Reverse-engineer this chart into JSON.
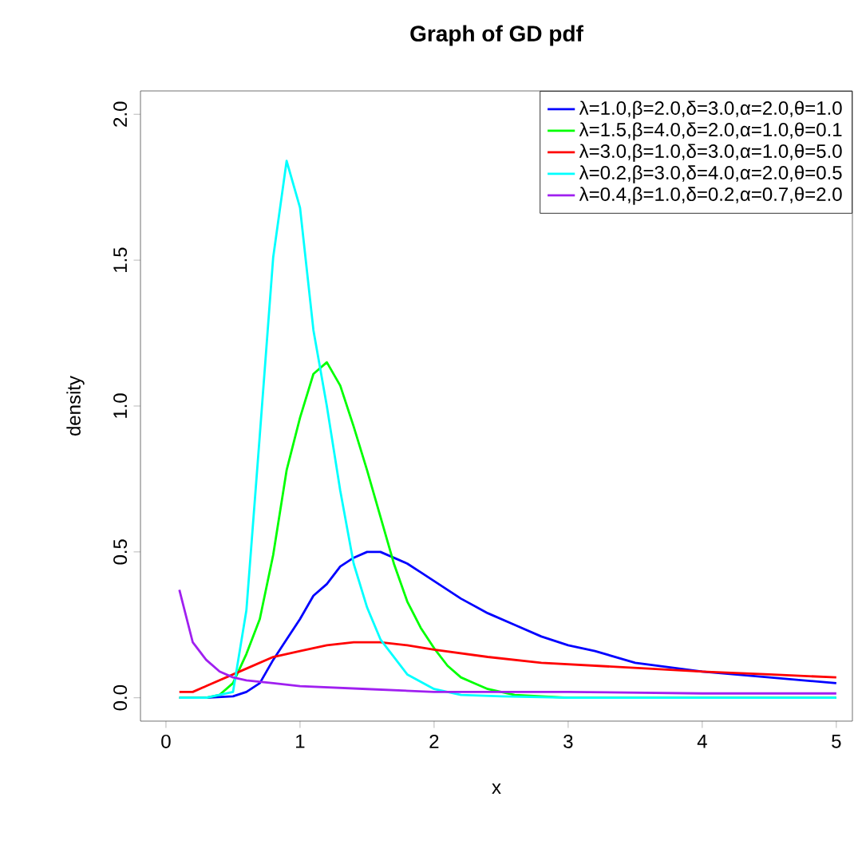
{
  "chart_data": {
    "type": "line",
    "title": "Graph of GD pdf",
    "xlabel": "x",
    "ylabel": "density",
    "xlim": [
      -0.19,
      5.12
    ],
    "ylim": [
      -0.08,
      2.08
    ],
    "xticks": [
      0,
      1,
      2,
      3,
      4,
      5
    ],
    "yticks": [
      {
        "value": 0,
        "label": "0.0"
      },
      {
        "value": 0.5,
        "label": "0.5"
      },
      {
        "value": 1,
        "label": "1.0"
      },
      {
        "value": 1.5,
        "label": "1.5"
      },
      {
        "value": 2,
        "label": "2.0"
      }
    ],
    "legend": "top right",
    "grid": false,
    "marker": "none",
    "line_style": "solid",
    "series": [
      {
        "name": "λ=1.0,β=2.0,δ=3.0,α=2.0,θ=1.0",
        "color": "#0000ff",
        "x": [
          0.1,
          0.3,
          0.5,
          0.6,
          0.7,
          0.8,
          0.9,
          1.0,
          1.1,
          1.2,
          1.3,
          1.4,
          1.5,
          1.6,
          1.7,
          1.8,
          1.9,
          2.0,
          2.2,
          2.4,
          2.6,
          2.8,
          3.0,
          3.2,
          3.5,
          4.0,
          4.5,
          5.0
        ],
        "values": [
          0,
          0,
          0.005,
          0.02,
          0.05,
          0.13,
          0.2,
          0.27,
          0.35,
          0.39,
          0.45,
          0.48,
          0.5,
          0.5,
          0.48,
          0.46,
          0.43,
          0.4,
          0.34,
          0.29,
          0.25,
          0.21,
          0.18,
          0.16,
          0.12,
          0.09,
          0.07,
          0.05
        ]
      },
      {
        "name": "λ=1.5,β=4.0,δ=2.0,α=1.0,θ=0.1",
        "color": "#00ff00",
        "x": [
          0.1,
          0.3,
          0.4,
          0.5,
          0.6,
          0.7,
          0.8,
          0.9,
          1.0,
          1.1,
          1.2,
          1.3,
          1.4,
          1.5,
          1.6,
          1.7,
          1.8,
          1.9,
          2.0,
          2.1,
          2.2,
          2.3,
          2.4,
          2.5,
          2.6,
          3.0,
          4.0,
          5.0
        ],
        "values": [
          0,
          0,
          0.01,
          0.05,
          0.15,
          0.27,
          0.49,
          0.78,
          0.96,
          1.11,
          1.15,
          1.07,
          0.93,
          0.78,
          0.62,
          0.46,
          0.33,
          0.24,
          0.17,
          0.11,
          0.07,
          0.05,
          0.03,
          0.02,
          0.01,
          0,
          0,
          0
        ]
      },
      {
        "name": "λ=3.0,β=1.0,δ=3.0,α=1.0,θ=5.0",
        "color": "#ff0000",
        "x": [
          0.1,
          0.2,
          0.3,
          0.4,
          0.5,
          0.6,
          0.8,
          0.9,
          1.0,
          1.2,
          1.4,
          1.6,
          1.8,
          2.0,
          2.4,
          2.8,
          3.2,
          3.6,
          4.0,
          4.5,
          5.0
        ],
        "values": [
          0.02,
          0.02,
          0.04,
          0.06,
          0.08,
          0.1,
          0.14,
          0.15,
          0.16,
          0.18,
          0.19,
          0.19,
          0.18,
          0.165,
          0.14,
          0.12,
          0.11,
          0.1,
          0.09,
          0.08,
          0.07
        ]
      },
      {
        "name": "λ=0.2,β=3.0,δ=4.0,α=2.0,θ=0.5",
        "color": "#00ffff",
        "x": [
          0.1,
          0.3,
          0.5,
          0.6,
          0.7,
          0.8,
          0.9,
          1.0,
          1.1,
          1.2,
          1.3,
          1.4,
          1.5,
          1.6,
          1.8,
          2.0,
          2.2,
          2.5,
          3.0,
          4.0,
          5.0
        ],
        "values": [
          0,
          0,
          0.02,
          0.3,
          0.9,
          1.51,
          1.84,
          1.68,
          1.26,
          1.0,
          0.71,
          0.46,
          0.31,
          0.2,
          0.08,
          0.03,
          0.01,
          0.005,
          0,
          0,
          0
        ]
      },
      {
        "name": "λ=0.4,β=1.0,δ=0.2,α=0.7,θ=2.0",
        "color": "#a020f0",
        "x": [
          0.1,
          0.2,
          0.3,
          0.4,
          0.5,
          0.6,
          0.8,
          1.0,
          1.5,
          2.0,
          3.0,
          4.0,
          5.0
        ],
        "values": [
          0.37,
          0.19,
          0.13,
          0.09,
          0.07,
          0.06,
          0.05,
          0.04,
          0.03,
          0.02,
          0.02,
          0.015,
          0.015
        ]
      }
    ]
  }
}
